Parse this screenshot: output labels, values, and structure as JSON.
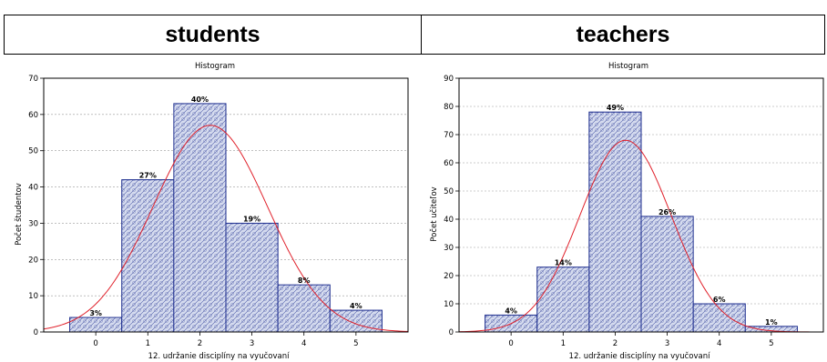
{
  "headers": {
    "left": "students",
    "right": "teachers"
  },
  "colors": {
    "bar_fill": "#d6dcef",
    "bar_stroke": "#1f2f8f",
    "curve": "#e0202a",
    "grid": "#9a9a9a"
  },
  "chart_data": [
    {
      "type": "bar",
      "title": "Histogram",
      "xlabel": "12.  udržanie disciplíny na vyučovaní",
      "ylabel": "Počet študentov",
      "categories": [
        "0",
        "1",
        "2",
        "3",
        "4",
        "5"
      ],
      "values": [
        4,
        42,
        63,
        30,
        13,
        6
      ],
      "labels": [
        "3%",
        "27%",
        "40%",
        "19%",
        "8%",
        "4%"
      ],
      "yticks": [
        "0",
        "10",
        "20",
        "30",
        "40",
        "50",
        "60",
        "70"
      ],
      "ylim": [
        0,
        70
      ],
      "xlim": [
        -1,
        6
      ],
      "grid": true,
      "curve": {
        "type": "normal",
        "mean": 2.2,
        "sd": 1.1,
        "peak": 57
      }
    },
    {
      "type": "bar",
      "title": "Histogram",
      "xlabel": "12.  udržanie disciplíny na vyučovaní",
      "ylabel": "Počet učiteľov",
      "categories": [
        "0",
        "1",
        "2",
        "3",
        "4",
        "5"
      ],
      "values": [
        6,
        23,
        78,
        41,
        10,
        2
      ],
      "labels": [
        "4%",
        "14%",
        "49%",
        "26%",
        "6%",
        "1%"
      ],
      "yticks": [
        "0",
        "10",
        "20",
        "30",
        "40",
        "50",
        "60",
        "70",
        "80",
        "90"
      ],
      "ylim": [
        0,
        90
      ],
      "xlim": [
        -1,
        6
      ],
      "grid": true,
      "curve": {
        "type": "normal",
        "mean": 2.2,
        "sd": 0.88,
        "peak": 68
      }
    }
  ]
}
